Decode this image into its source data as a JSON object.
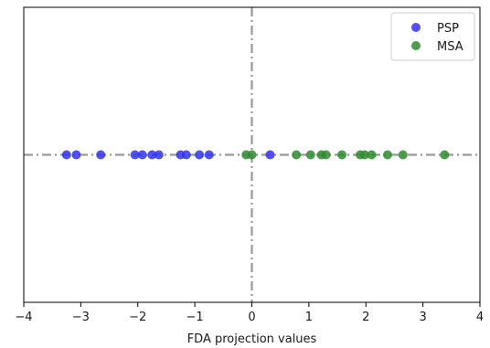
{
  "chart_data": {
    "type": "scatter",
    "title": "",
    "xlabel": "FDA projection values",
    "ylabel": "",
    "xlim": [
      -4,
      4
    ],
    "ylim": [
      -1,
      1
    ],
    "xticks": [
      -4,
      -3,
      -2,
      -1,
      0,
      1,
      2,
      3,
      4
    ],
    "xtick_labels": [
      "−4",
      "−3",
      "−2",
      "−1",
      "0",
      "1",
      "2",
      "3",
      "4"
    ],
    "grid": false,
    "legend_position": "top-right",
    "reference_lines": {
      "horizontal_at_y": 0,
      "vertical_at_x": 0,
      "style": "dash-dot",
      "color": "#999999"
    },
    "series": [
      {
        "name": "PSP",
        "color": "#3333ee",
        "x": [
          -3.25,
          -3.08,
          -2.65,
          -2.05,
          -1.92,
          -1.75,
          -1.63,
          -1.25,
          -1.15,
          -0.92,
          -0.75,
          0.32
        ],
        "y": [
          0,
          0,
          0,
          0,
          0,
          0,
          0,
          0,
          0,
          0,
          0,
          0
        ]
      },
      {
        "name": "MSA",
        "color": "#2e8b2e",
        "x": [
          -0.1,
          0.0,
          0.78,
          1.03,
          1.22,
          1.3,
          1.58,
          1.9,
          1.98,
          2.1,
          2.38,
          2.65,
          3.38
        ],
        "y": [
          0,
          0,
          0,
          0,
          0,
          0,
          0,
          0,
          0,
          0,
          0,
          0,
          0
        ]
      }
    ]
  }
}
